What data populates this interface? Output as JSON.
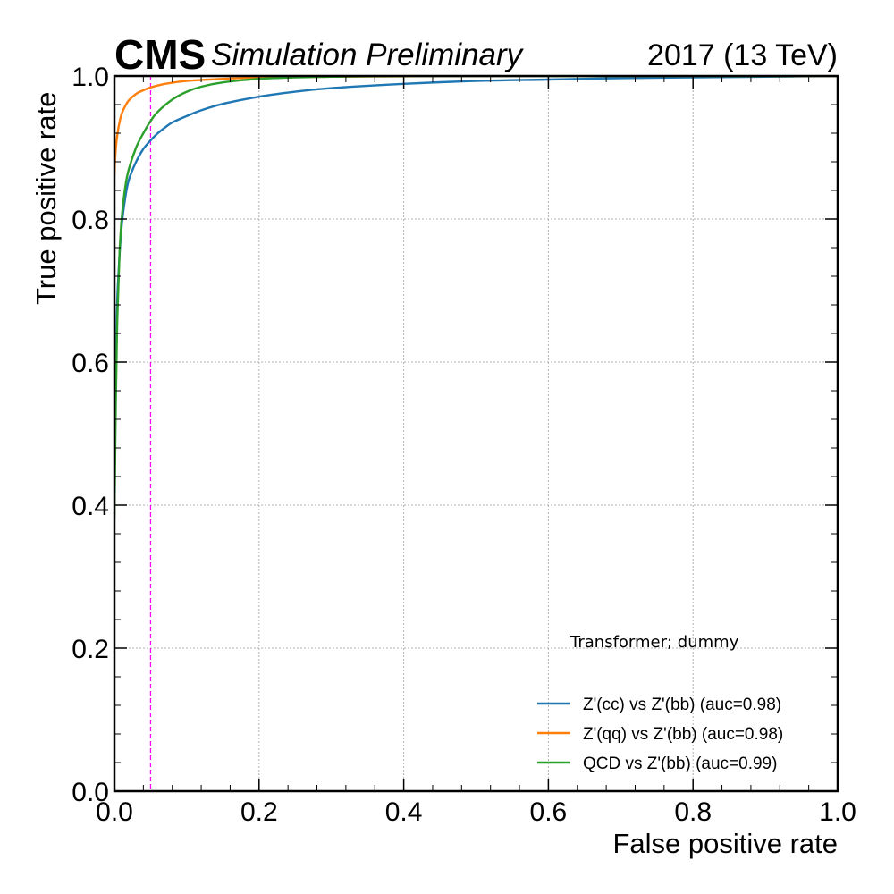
{
  "header": {
    "experiment": "CMS",
    "status": "Simulation Preliminary",
    "lumi": "2017 (13 TeV)"
  },
  "chart_data": {
    "type": "line",
    "xlabel": "False positive rate",
    "ylabel": "True positive rate",
    "xlim": [
      0.0,
      1.0
    ],
    "ylim": [
      0.0,
      1.0
    ],
    "xticks": [
      "0.0",
      "0.2",
      "0.4",
      "0.6",
      "0.8",
      "1.0"
    ],
    "yticks": [
      "0.0",
      "0.2",
      "0.4",
      "0.6",
      "0.8",
      "1.0"
    ],
    "grid": true,
    "legend_title": "Transformer; dummy",
    "legend_position": "lower-right",
    "reference_line": {
      "x": 0.05,
      "style": "dashed",
      "color": "#ff00ff"
    },
    "series": [
      {
        "name": "Z'(cc) vs Z'(bb) (auc=0.98)",
        "color": "#1f77b4",
        "x": [
          0.0,
          0.003,
          0.006,
          0.01,
          0.015,
          0.02,
          0.03,
          0.04,
          0.05,
          0.06,
          0.07,
          0.08,
          0.1,
          0.12,
          0.15,
          0.2,
          0.25,
          0.3,
          0.4,
          0.5,
          0.6,
          0.7,
          0.8,
          0.9,
          1.0
        ],
        "y": [
          0.42,
          0.65,
          0.73,
          0.79,
          0.83,
          0.855,
          0.88,
          0.898,
          0.91,
          0.92,
          0.928,
          0.935,
          0.944,
          0.952,
          0.961,
          0.971,
          0.978,
          0.983,
          0.989,
          0.993,
          0.995,
          0.997,
          0.998,
          0.999,
          1.0
        ]
      },
      {
        "name": "Z'(qq) vs Z'(bb) (auc=0.98)",
        "color": "#ff7f0e",
        "x": [
          0.0,
          0.001,
          0.003,
          0.006,
          0.01,
          0.015,
          0.02,
          0.03,
          0.04,
          0.05,
          0.07,
          0.1,
          0.15,
          0.2,
          0.3,
          0.5,
          1.0
        ],
        "y": [
          0.86,
          0.885,
          0.91,
          0.93,
          0.947,
          0.958,
          0.966,
          0.975,
          0.98,
          0.984,
          0.989,
          0.993,
          0.996,
          0.998,
          0.999,
          1.0,
          1.0
        ]
      },
      {
        "name": "QCD vs Z'(bb) (auc=0.99)",
        "color": "#2ca02c",
        "x": [
          0.0,
          0.002,
          0.004,
          0.007,
          0.01,
          0.015,
          0.02,
          0.03,
          0.04,
          0.05,
          0.06,
          0.08,
          0.1,
          0.12,
          0.15,
          0.2,
          0.25,
          0.3,
          0.4,
          0.6,
          1.0
        ],
        "y": [
          0.38,
          0.55,
          0.66,
          0.75,
          0.8,
          0.845,
          0.87,
          0.9,
          0.92,
          0.937,
          0.95,
          0.967,
          0.978,
          0.985,
          0.991,
          0.996,
          0.998,
          0.999,
          1.0,
          1.0,
          1.0
        ]
      }
    ]
  }
}
